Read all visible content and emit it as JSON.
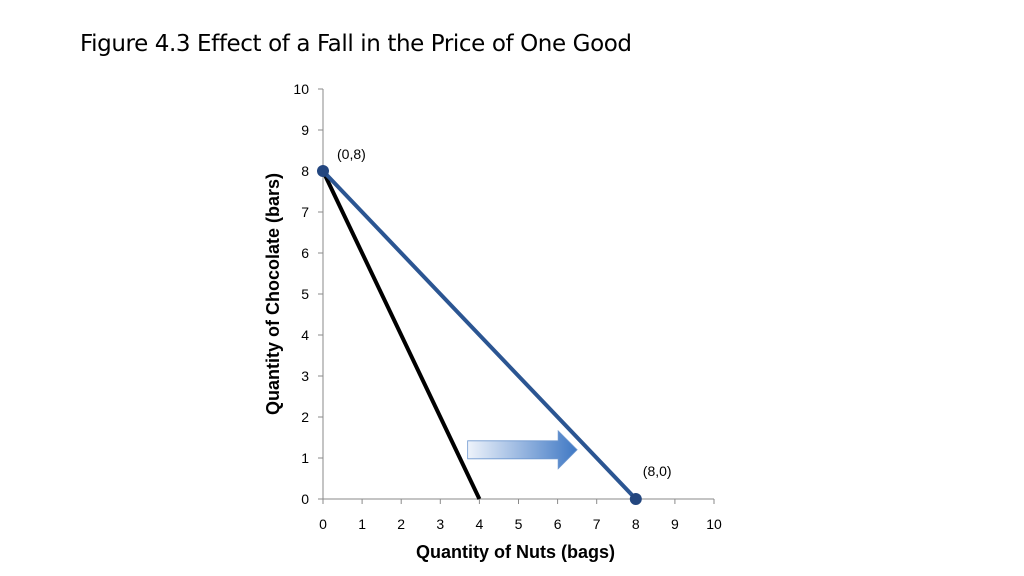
{
  "page": {
    "title": "Figure 4.3  Effect of a Fall in the Price of One Good"
  },
  "chart_data": {
    "type": "line",
    "xlabel": "Quantity of Nuts (bags)",
    "ylabel": "Quantity of Chocolate (bars)",
    "xlim": [
      0,
      10
    ],
    "ylim": [
      0,
      10
    ],
    "x_ticks": [
      "0",
      "1",
      "2",
      "3",
      "4",
      "5",
      "6",
      "7",
      "8",
      "9",
      "10"
    ],
    "y_ticks": [
      "0",
      "1",
      "2",
      "3",
      "4",
      "5",
      "6",
      "7",
      "8",
      "9",
      "10"
    ],
    "grid": false,
    "series": [
      {
        "color": "#000000",
        "points": [
          [
            0,
            8
          ],
          [
            4,
            0
          ]
        ]
      },
      {
        "color": "#2b5592",
        "points": [
          [
            0,
            8
          ],
          [
            8,
            0
          ]
        ]
      }
    ],
    "markers": [
      {
        "x": 0,
        "y": 8,
        "label": "(0,8)",
        "color": "#23467f"
      },
      {
        "x": 8,
        "y": 0,
        "label": "(8,0)",
        "color": "#23467f"
      }
    ],
    "annotations": [
      {
        "type": "arrow",
        "direction": "right",
        "from": [
          3.7,
          1.2
        ],
        "to": [
          6.5,
          1.2
        ],
        "color": "#3f78c4"
      }
    ]
  }
}
